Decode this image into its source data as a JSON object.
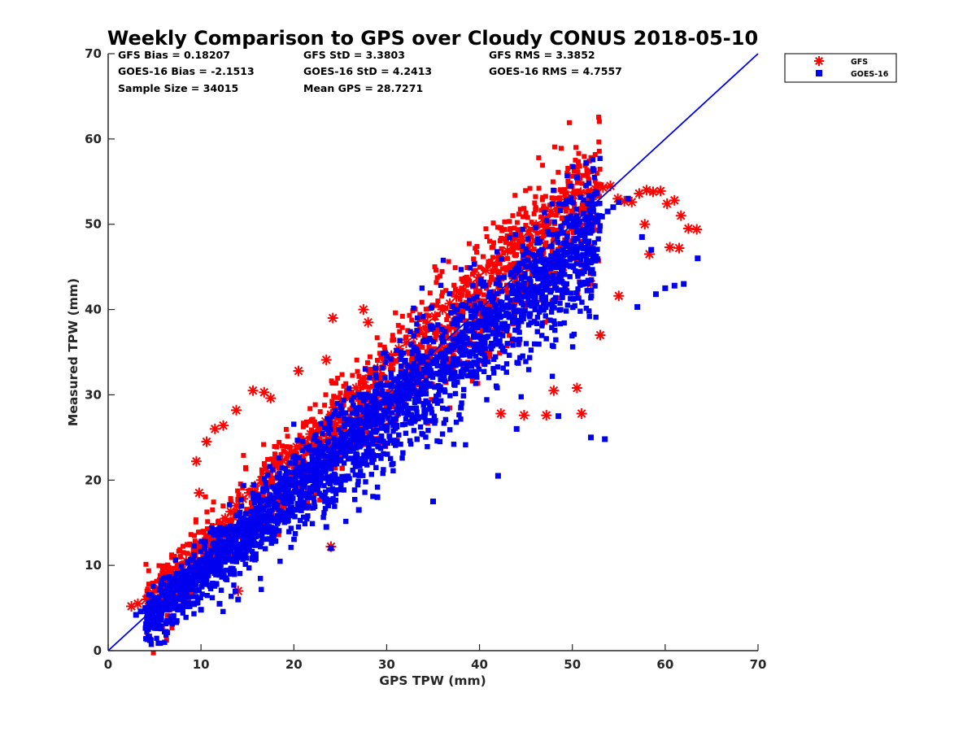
{
  "chart_data": {
    "type": "scatter",
    "title": "Weekly Comparison to GPS over Cloudy CONUS 2018-05-10",
    "xlabel": "GPS TPW (mm)",
    "ylabel": "Measured TPW (mm)",
    "xlim": [
      0,
      70
    ],
    "ylim": [
      0,
      70
    ],
    "xticks": [
      0,
      10,
      20,
      30,
      40,
      50,
      60,
      70
    ],
    "yticks": [
      0,
      10,
      20,
      30,
      40,
      50,
      60,
      70
    ],
    "grid": false,
    "legend_position": "outside top-right",
    "stats": [
      [
        "GFS Bias = 0.18207",
        "GFS StD = 3.3803",
        "GFS RMS = 3.3852"
      ],
      [
        "GOES-16 Bias = -2.1513",
        "GOES-16 StD = 4.2413",
        "GOES-16 RMS = 4.7557"
      ],
      [
        "Sample Size = 34015",
        "Mean GPS = 28.7271",
        ""
      ]
    ],
    "reference_line": {
      "x": [
        0,
        70
      ],
      "y": [
        0,
        70
      ],
      "color": "#0000ee"
    },
    "series": [
      {
        "name": "GFS",
        "marker": "asterisk",
        "color": "#ff0000",
        "x": [
          2.5,
          3.2,
          4.1,
          4.8,
          5.5,
          6.2,
          7.0,
          7.8,
          8.4,
          9.0,
          9.5,
          10.2,
          10.8,
          11.4,
          12.0,
          12.6,
          13.2,
          13.8,
          14.5,
          15.2,
          15.8,
          16.5,
          17.2,
          18.0,
          18.8,
          19.5,
          20.3,
          21.0,
          21.8,
          22.6,
          23.4,
          24.0,
          24.3,
          25.1,
          25.9,
          26.7,
          27.5,
          28.2,
          29.0,
          29.8,
          30.5,
          31.3,
          32.1,
          32.9,
          33.6,
          34.4,
          35.2,
          36.0,
          36.8,
          37.5,
          38.3,
          39.1,
          39.9,
          40.7,
          41.4,
          42.2,
          43.0,
          43.8,
          44.6,
          45.3,
          46.1,
          46.9,
          47.7,
          48.5,
          49.3,
          50.1,
          50.9,
          51.7,
          52.5,
          53.3,
          54.1,
          54.9,
          55.6,
          56.4,
          57.2,
          58.0,
          58.7,
          59.5,
          60.2,
          61.0,
          61.7,
          62.5,
          63.4,
          52.0,
          51.0,
          50.5,
          48.0,
          47.2,
          44.8,
          42.3,
          53.0,
          55.0,
          58.3,
          61.5,
          60.5,
          57.8,
          9.8,
          9.5,
          10.6,
          11.5,
          12.4,
          13.8,
          15.6,
          16.8,
          17.5,
          20.5,
          23.5,
          24.2,
          27.5,
          28.0,
          8.0,
          6.0,
          4.5,
          14.0,
          24.0,
          30.0,
          33.0,
          36.0,
          38.0,
          41.0,
          44.0,
          46.0,
          49.0
        ],
        "y": [
          5.2,
          5.5,
          6.0,
          6.8,
          7.3,
          8.5,
          9.0,
          9.8,
          10.5,
          11.2,
          12.0,
          12.5,
          13.4,
          14.0,
          14.8,
          15.5,
          16.3,
          17.0,
          17.8,
          18.5,
          19.3,
          20.0,
          20.8,
          21.6,
          22.3,
          23.1,
          23.9,
          24.6,
          25.4,
          26.2,
          26.9,
          27.7,
          28.5,
          29.2,
          30.0,
          30.8,
          31.5,
          32.3,
          33.1,
          33.8,
          34.6,
          35.4,
          36.1,
          36.9,
          37.7,
          38.4,
          39.2,
          40.0,
          40.7,
          41.5,
          42.3,
          43.0,
          43.8,
          44.6,
          45.3,
          46.1,
          46.9,
          47.6,
          48.4,
          49.2,
          49.9,
          50.7,
          51.5,
          52.2,
          52.9,
          53.4,
          53.7,
          53.9,
          54.1,
          54.3,
          54.5,
          53.0,
          52.7,
          52.6,
          53.6,
          54.0,
          53.8,
          53.9,
          52.4,
          52.8,
          51.0,
          49.5,
          49.4,
          43.0,
          27.8,
          30.8,
          30.5,
          27.6,
          27.6,
          27.8,
          37.0,
          41.6,
          46.5,
          47.2,
          47.3,
          50.0,
          18.5,
          22.2,
          24.5,
          26.0,
          26.4,
          28.2,
          30.5,
          30.3,
          29.6,
          32.8,
          34.1,
          39.0,
          40.0,
          38.5,
          8.5,
          7.5,
          5.5,
          7.0,
          12.2,
          27.5,
          31.0,
          34.5,
          37.0,
          38.5,
          41.0,
          42.5,
          45.0
        ]
      },
      {
        "name": "GOES-16",
        "marker": "square",
        "color": "#0000ee",
        "x": [
          3.0,
          3.5,
          4.0,
          4.6,
          5.2,
          5.8,
          6.4,
          7.0,
          7.6,
          8.2,
          8.8,
          9.4,
          10.0,
          10.6,
          11.2,
          11.8,
          12.4,
          13.0,
          13.6,
          14.2,
          14.8,
          15.4,
          16.0,
          16.6,
          17.2,
          17.8,
          18.4,
          19.0,
          19.6,
          20.2,
          20.8,
          21.4,
          22.0,
          22.6,
          23.2,
          23.8,
          24.4,
          25.0,
          25.6,
          26.2,
          26.8,
          27.4,
          28.0,
          28.6,
          29.2,
          29.8,
          30.4,
          31.0,
          31.6,
          32.2,
          32.8,
          33.4,
          34.0,
          34.6,
          35.2,
          35.8,
          36.4,
          37.0,
          37.6,
          38.2,
          38.8,
          39.4,
          40.0,
          40.6,
          41.2,
          41.8,
          42.4,
          43.0,
          43.6,
          44.2,
          44.8,
          45.4,
          46.0,
          46.6,
          47.2,
          47.8,
          48.4,
          49.0,
          49.6,
          50.2,
          50.8,
          51.4,
          52.0,
          52.6,
          53.2,
          53.8,
          54.4,
          55.0,
          56.0,
          57.5,
          58.5,
          59.0,
          60.0,
          61.0,
          62.0,
          63.5,
          51.5,
          52.0,
          50.5,
          53.5,
          57.0,
          48.5,
          44.0,
          38.0,
          42.0,
          32.0,
          35.0,
          27.0,
          29.0,
          24.0,
          23.5,
          14.0,
          12.0,
          10.0,
          7.0,
          6.0,
          5.0,
          4.5
        ],
        "y": [
          4.2,
          4.6,
          5.0,
          5.6,
          6.1,
          6.7,
          7.2,
          7.8,
          8.3,
          8.9,
          9.5,
          10.0,
          10.6,
          11.1,
          11.7,
          12.3,
          12.8,
          13.4,
          13.9,
          14.5,
          15.1,
          15.6,
          16.2,
          16.7,
          17.3,
          17.9,
          18.4,
          19.0,
          19.5,
          20.1,
          20.7,
          21.2,
          21.8,
          22.3,
          22.9,
          23.5,
          24.0,
          24.6,
          25.1,
          25.7,
          26.3,
          26.8,
          27.4,
          27.9,
          28.5,
          29.1,
          29.6,
          30.2,
          30.7,
          31.3,
          31.9,
          32.4,
          33.0,
          33.5,
          34.1,
          34.7,
          35.2,
          35.8,
          36.3,
          36.9,
          37.5,
          38.0,
          38.6,
          39.1,
          39.7,
          40.3,
          40.8,
          41.4,
          41.9,
          42.5,
          43.1,
          43.6,
          44.2,
          44.7,
          45.3,
          45.9,
          46.4,
          47.0,
          47.5,
          48.1,
          48.7,
          49.2,
          49.8,
          50.3,
          50.9,
          51.5,
          52.0,
          52.6,
          53.0,
          48.5,
          47.0,
          41.8,
          42.5,
          42.8,
          43.0,
          46.0,
          57.2,
          25.0,
          55.5,
          24.8,
          40.3,
          27.5,
          26.0,
          28.5,
          20.5,
          34.0,
          17.5,
          16.5,
          18.0,
          12.0,
          14.5,
          6.0,
          5.5,
          4.8,
          5.0,
          5.5,
          6.0,
          5.2
        ]
      }
    ]
  }
}
